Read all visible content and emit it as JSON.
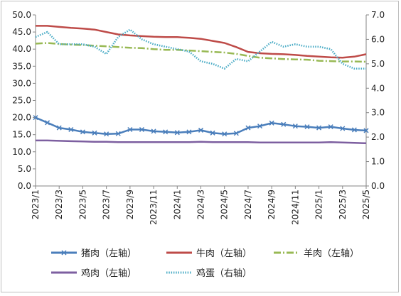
{
  "chart_data": {
    "type": "line",
    "title": "",
    "xlabel": "",
    "ylabel": "",
    "y_left": {
      "lim": [
        0,
        50
      ],
      "ticks": [
        "0.0",
        "5.0",
        "10.0",
        "15.0",
        "20.0",
        "25.0",
        "30.0",
        "35.0",
        "40.0",
        "45.0",
        "50.0"
      ]
    },
    "y_right": {
      "lim": [
        0,
        7
      ],
      "ticks": [
        "0.0",
        "1.0",
        "2.0",
        "3.0",
        "4.0",
        "5.0",
        "6.0",
        "7.0"
      ]
    },
    "x_range": [
      "2023-01",
      "2025-05"
    ],
    "categories": [
      "2023/1",
      "2023/3",
      "2023/5",
      "2023/7",
      "2023/9",
      "2023/11",
      "2024/1",
      "2024/3",
      "2024/5",
      "2024/7",
      "2024/9",
      "2024/11",
      "2025/1",
      "2025/3",
      "2025/5"
    ],
    "legend_position": "bottom",
    "grid": false,
    "series": [
      {
        "name": "猪肉（左轴）",
        "axis": "left",
        "color": "#4a7ebb",
        "style": "line-with-markers",
        "x": [
          "2023/1",
          "2023/2",
          "2023/3",
          "2023/4",
          "2023/5",
          "2023/6",
          "2023/7",
          "2023/8",
          "2023/9",
          "2023/10",
          "2023/11",
          "2023/12",
          "2024/1",
          "2024/2",
          "2024/3",
          "2024/4",
          "2024/5",
          "2024/6",
          "2024/7",
          "2024/8",
          "2024/9",
          "2024/10",
          "2024/11",
          "2024/12",
          "2025/1",
          "2025/2",
          "2025/3",
          "2025/4",
          "2025/5"
        ],
        "values": [
          20.0,
          18.5,
          17.0,
          16.5,
          15.8,
          15.5,
          15.2,
          15.3,
          16.5,
          16.5,
          16.0,
          15.8,
          15.6,
          15.8,
          16.3,
          15.5,
          15.2,
          15.4,
          17.0,
          17.5,
          18.4,
          18.0,
          17.5,
          17.3,
          17.0,
          17.3,
          16.8,
          16.4,
          16.2
        ]
      },
      {
        "name": "牛肉（左轴）",
        "axis": "left",
        "color": "#be4b48",
        "style": "line",
        "x": [
          "2023/1",
          "2023/2",
          "2023/3",
          "2023/4",
          "2023/5",
          "2023/6",
          "2023/7",
          "2023/8",
          "2023/9",
          "2023/10",
          "2023/11",
          "2023/12",
          "2024/1",
          "2024/2",
          "2024/3",
          "2024/4",
          "2024/5",
          "2024/6",
          "2024/7",
          "2024/8",
          "2024/9",
          "2024/10",
          "2024/11",
          "2024/12",
          "2025/1",
          "2025/2",
          "2025/3",
          "2025/4",
          "2025/5"
        ],
        "values": [
          46.8,
          46.8,
          46.5,
          46.2,
          46.0,
          45.7,
          45.0,
          44.3,
          44.0,
          43.8,
          43.6,
          43.5,
          43.5,
          43.3,
          43.0,
          42.4,
          41.8,
          40.6,
          39.2,
          38.8,
          38.6,
          38.5,
          38.3,
          38.0,
          37.8,
          37.6,
          37.5,
          37.8,
          38.5
        ]
      },
      {
        "name": "羊肉（左轴）",
        "axis": "left",
        "color": "#98b954",
        "style": "dashed",
        "x": [
          "2023/1",
          "2023/2",
          "2023/3",
          "2023/4",
          "2023/5",
          "2023/6",
          "2023/7",
          "2023/8",
          "2023/9",
          "2023/10",
          "2023/11",
          "2023/12",
          "2024/1",
          "2024/2",
          "2024/3",
          "2024/4",
          "2024/5",
          "2024/6",
          "2024/7",
          "2024/8",
          "2024/9",
          "2024/10",
          "2024/11",
          "2024/12",
          "2025/1",
          "2025/2",
          "2025/3",
          "2025/4",
          "2025/5"
        ],
        "values": [
          41.6,
          41.8,
          41.5,
          41.3,
          41.2,
          41.0,
          40.8,
          40.6,
          40.4,
          40.3,
          40.0,
          39.8,
          39.8,
          39.6,
          39.4,
          39.2,
          39.0,
          38.6,
          38.0,
          37.5,
          37.3,
          37.1,
          37.0,
          36.9,
          36.6,
          36.5,
          36.4,
          36.4,
          36.3
        ]
      },
      {
        "name": "鸡肉（左轴）",
        "axis": "left",
        "color": "#7d5fa0",
        "style": "line",
        "x": [
          "2023/1",
          "2023/2",
          "2023/3",
          "2023/4",
          "2023/5",
          "2023/6",
          "2023/7",
          "2023/8",
          "2023/9",
          "2023/10",
          "2023/11",
          "2023/12",
          "2024/1",
          "2024/2",
          "2024/3",
          "2024/4",
          "2024/5",
          "2024/6",
          "2024/7",
          "2024/8",
          "2024/9",
          "2024/10",
          "2024/11",
          "2024/12",
          "2025/1",
          "2025/2",
          "2025/3",
          "2025/4",
          "2025/5"
        ],
        "values": [
          13.3,
          13.3,
          13.2,
          13.1,
          13.0,
          12.9,
          12.9,
          12.8,
          12.8,
          12.8,
          12.8,
          12.8,
          12.8,
          12.8,
          12.9,
          12.8,
          12.8,
          12.8,
          12.8,
          12.7,
          12.7,
          12.7,
          12.7,
          12.7,
          12.7,
          12.8,
          12.7,
          12.6,
          12.5
        ]
      },
      {
        "name": "鸡蛋（右轴）",
        "axis": "right",
        "color": "#4bacc6",
        "style": "dotted",
        "x": [
          "2023/1",
          "2023/2",
          "2023/3",
          "2023/4",
          "2023/5",
          "2023/6",
          "2023/7",
          "2023/8",
          "2023/9",
          "2023/10",
          "2023/11",
          "2023/12",
          "2024/1",
          "2024/2",
          "2024/3",
          "2024/4",
          "2024/5",
          "2024/6",
          "2024/7",
          "2024/8",
          "2024/9",
          "2024/10",
          "2024/11",
          "2024/12",
          "2025/1",
          "2025/2",
          "2025/3",
          "2025/4",
          "2025/5"
        ],
        "values": [
          6.1,
          6.3,
          5.8,
          5.8,
          5.8,
          5.7,
          5.4,
          6.1,
          6.4,
          6.0,
          5.8,
          5.7,
          5.6,
          5.5,
          5.1,
          5.0,
          4.8,
          5.2,
          5.1,
          5.5,
          5.9,
          5.7,
          5.8,
          5.7,
          5.7,
          5.6,
          5.0,
          4.8,
          4.8
        ]
      }
    ]
  }
}
